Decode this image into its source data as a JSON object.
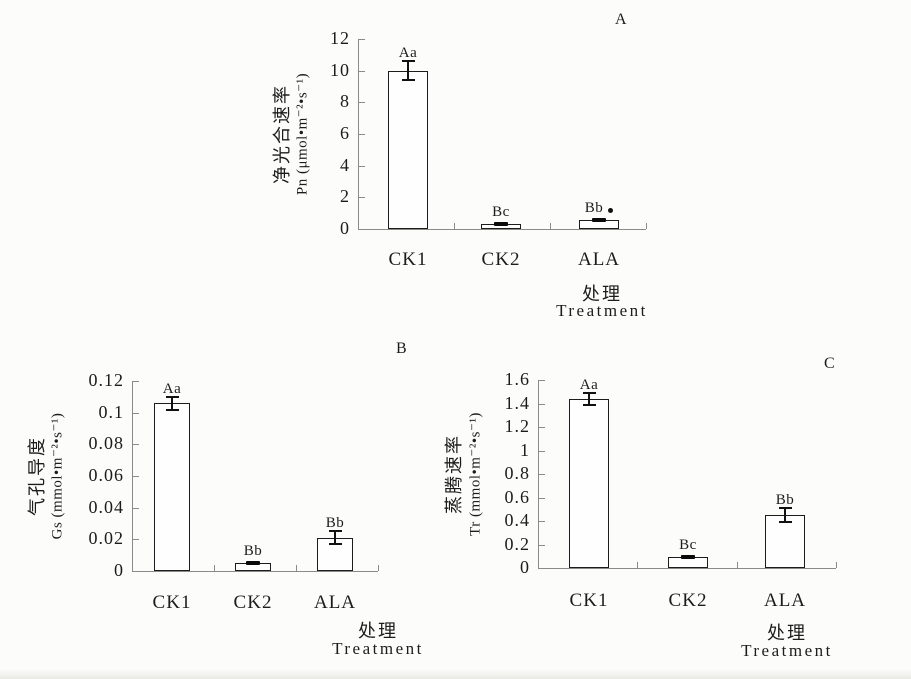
{
  "page": {
    "background": "#fcfcfa",
    "text_color": "#1c1c1c",
    "axis_color": "#8a8a86",
    "bar_fill": "#fefefe",
    "bar_border": "#1c1c1c"
  },
  "chart_data": [
    {
      "id": "A",
      "type": "bar",
      "panel_label": "A",
      "categories": [
        "CK1",
        "CK2",
        "ALA"
      ],
      "values": [
        10.0,
        0.3,
        0.55
      ],
      "errors": [
        0.6,
        0,
        0
      ],
      "error_style": [
        "ibeam",
        "dash",
        "dash"
      ],
      "stat_labels": [
        "Aa",
        "Bc",
        "Bb"
      ],
      "stat_suffix_dot": [
        false,
        false,
        true
      ],
      "ylabel_line1": "净光合速率",
      "ylabel_line2": "Pn (μmol•m⁻²•s⁻¹)",
      "xlabel_line1": "处理",
      "xlabel_line2": "Treatment",
      "ylim": [
        0,
        12
      ],
      "ytick_labels": [
        "0",
        "2",
        "4",
        "6",
        "8",
        "10",
        "12"
      ],
      "grid": false,
      "legend": false
    },
    {
      "id": "B",
      "type": "bar",
      "panel_label": "B",
      "categories": [
        "CK1",
        "CK2",
        "ALA"
      ],
      "values": [
        0.106,
        0.005,
        0.021
      ],
      "errors": [
        0.004,
        0,
        0.004
      ],
      "error_style": [
        "ibeam",
        "dash",
        "ibeam"
      ],
      "stat_labels": [
        "Aa",
        "Bb",
        "Bb"
      ],
      "stat_suffix_dot": [
        false,
        false,
        false
      ],
      "ylabel_line1": "气孔导度",
      "ylabel_line2": "Gs (mmol•m⁻²•s⁻¹)",
      "xlabel_line1": "处理",
      "xlabel_line2": "Treatment",
      "ylim": [
        0,
        0.12
      ],
      "ytick_labels": [
        "0",
        "0.02",
        "0.04",
        "0.06",
        "0.08",
        "0.1",
        "0.12"
      ],
      "grid": false,
      "legend": false
    },
    {
      "id": "C",
      "type": "bar",
      "panel_label": "C",
      "categories": [
        "CK1",
        "CK2",
        "ALA"
      ],
      "values": [
        1.44,
        0.09,
        0.45
      ],
      "errors": [
        0.05,
        0,
        0.06
      ],
      "error_style": [
        "ibeam",
        "dash",
        "ibeam"
      ],
      "stat_labels": [
        "Aa",
        "Bc",
        "Bb"
      ],
      "stat_suffix_dot": [
        false,
        false,
        false
      ],
      "ylabel_line1": "蒸腾速率",
      "ylabel_line2": "Tr (mmol•m⁻²•s⁻¹)",
      "xlabel_line1": "处理",
      "xlabel_line2": "Treatment",
      "ylim": [
        0,
        1.6
      ],
      "ytick_labels": [
        "0",
        "0.2",
        "0.4",
        "0.6",
        "0.8",
        "1",
        "1.2",
        "1.4",
        "1.6"
      ],
      "grid": false,
      "legend": false
    }
  ]
}
